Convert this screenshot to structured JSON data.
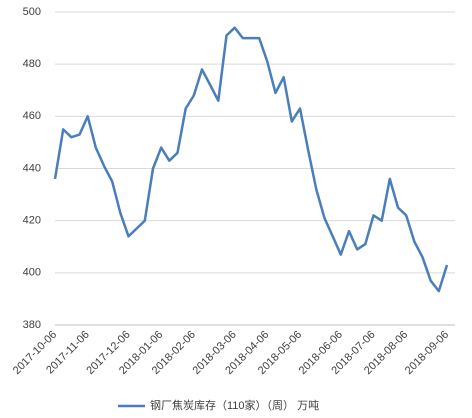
{
  "chart_data": {
    "type": "line",
    "categories": [
      "2017-10-06",
      null,
      null,
      null,
      "2017-11-06",
      null,
      null,
      null,
      null,
      "2017-12-06",
      null,
      null,
      null,
      "2018-01-06",
      null,
      null,
      null,
      "2018-02-06",
      null,
      null,
      null,
      null,
      "2018-03-06",
      null,
      null,
      null,
      "2018-04-06",
      null,
      null,
      null,
      "2018-05-06",
      null,
      null,
      null,
      null,
      "2018-06-06",
      null,
      null,
      null,
      "2018-07-06",
      null,
      null,
      null,
      "2018-08-06",
      null,
      null,
      null,
      null,
      "2018-09-06"
    ],
    "series": [
      {
        "name": "钢厂焦炭库存（110家）（周） 万吨",
        "color": "#4a7ebb",
        "values": [
          436,
          455,
          452,
          453,
          460,
          448,
          441,
          435,
          423,
          414,
          417,
          420,
          440,
          448,
          443,
          446,
          463,
          468,
          478,
          472,
          466,
          491,
          494,
          490,
          490,
          490,
          481,
          469,
          475,
          458,
          463,
          447,
          432,
          421,
          414,
          407,
          416,
          409,
          411,
          422,
          420,
          436,
          425,
          422,
          412,
          406,
          397,
          393,
          403
        ]
      }
    ],
    "ylim": [
      380,
      500
    ],
    "yticks": [
      380,
      400,
      420,
      440,
      460,
      480,
      500
    ],
    "grid": true
  }
}
